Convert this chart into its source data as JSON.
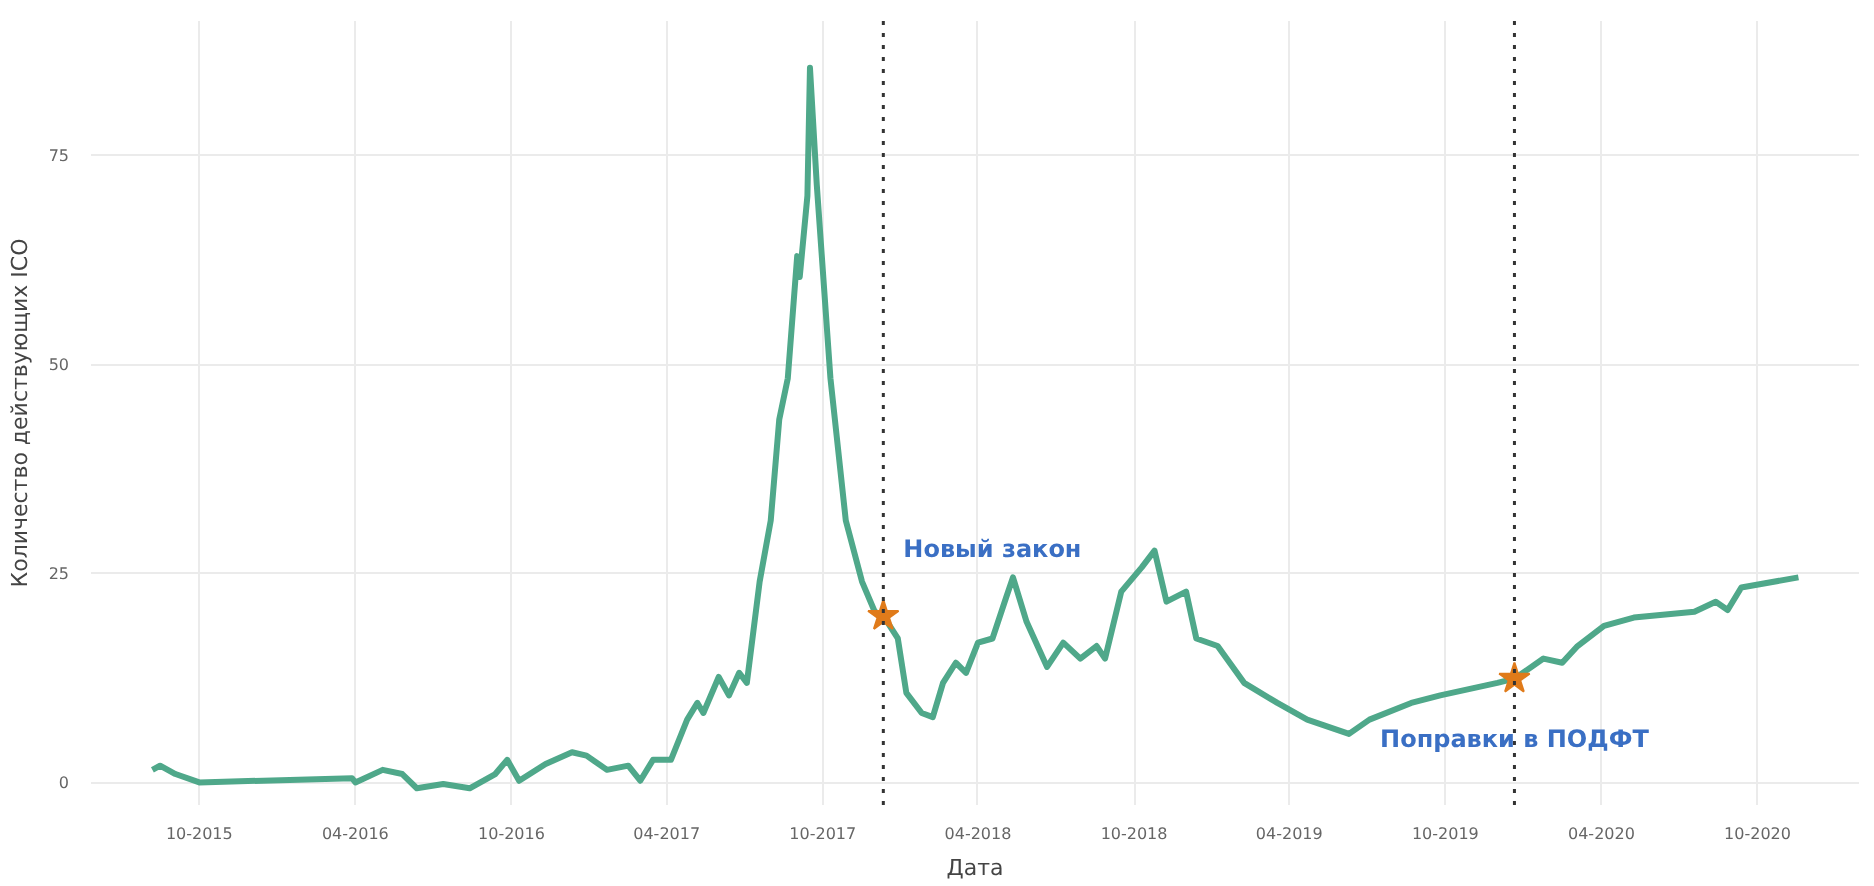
{
  "chart_data": {
    "type": "line",
    "xlabel": "Дата",
    "ylabel": "Количество действующих ICO",
    "xlim": [
      "2015-05-27",
      "2021-01-28"
    ],
    "ylim": [
      -2.7,
      91
    ],
    "xticks": [
      {
        "value": "2015-10-01",
        "label": "10-2015"
      },
      {
        "value": "2016-04-01",
        "label": "04-2016"
      },
      {
        "value": "2016-10-01",
        "label": "10-2016"
      },
      {
        "value": "2017-04-01",
        "label": "04-2017"
      },
      {
        "value": "2017-10-01",
        "label": "10-2017"
      },
      {
        "value": "2018-04-01",
        "label": "04-2018"
      },
      {
        "value": "2018-10-01",
        "label": "10-2018"
      },
      {
        "value": "2019-04-01",
        "label": "04-2019"
      },
      {
        "value": "2019-10-01",
        "label": "10-2019"
      },
      {
        "value": "2020-04-01",
        "label": "04-2020"
      },
      {
        "value": "2020-10-01",
        "label": "10-2020"
      }
    ],
    "yticks": [
      0,
      25,
      50,
      75
    ],
    "grid": true,
    "line_style": "solid",
    "series": [
      {
        "color": "#4fa88a",
        "x": [
          "2015-08-07",
          "2015-08-16",
          "2015-09-03",
          "2015-10-01",
          "2016-03-28",
          "2016-04-01",
          "2016-05-03",
          "2016-05-26",
          "2016-06-12",
          "2016-07-13",
          "2016-08-13",
          "2016-09-12",
          "2016-09-26",
          "2016-10-10",
          "2016-11-10",
          "2016-12-11",
          "2016-12-28",
          "2017-01-21",
          "2017-02-15",
          "2017-03-01",
          "2017-03-16",
          "2017-04-06",
          "2017-04-25",
          "2017-05-07",
          "2017-05-14",
          "2017-06-01",
          "2017-06-13",
          "2017-06-25",
          "2017-07-04",
          "2017-07-19",
          "2017-08-01",
          "2017-08-11",
          "2017-08-21",
          "2017-09-01",
          "2017-09-04",
          "2017-09-13",
          "2017-09-16",
          "2017-09-24",
          "2017-10-10",
          "2017-10-28",
          "2017-11-16",
          "2017-12-01",
          "2017-12-11",
          "2017-12-28",
          "2018-01-07",
          "2018-01-25",
          "2018-02-07",
          "2018-02-19",
          "2018-03-06",
          "2018-03-18",
          "2018-04-01",
          "2018-04-18",
          "2018-05-04",
          "2018-05-12",
          "2018-05-28",
          "2018-06-21",
          "2018-07-10",
          "2018-07-30",
          "2018-08-18",
          "2018-08-28",
          "2018-09-16",
          "2018-10-10",
          "2018-10-25",
          "2018-11-08",
          "2018-12-01",
          "2018-12-13",
          "2019-01-07",
          "2019-02-07",
          "2019-03-18",
          "2019-04-22",
          "2019-06-10",
          "2019-07-04",
          "2019-08-22",
          "2019-09-25",
          "2019-12-01",
          "2019-12-21",
          "2020-01-24",
          "2020-02-15",
          "2020-03-04",
          "2020-04-04",
          "2020-05-09",
          "2020-07-19",
          "2020-08-13",
          "2020-08-27",
          "2020-09-12",
          "2020-11-18"
        ],
        "values": [
          1.5,
          2,
          1,
          0,
          0.5,
          0,
          1.5,
          1,
          -0.7,
          -0.2,
          -0.7,
          1,
          2.7,
          0.2,
          2.2,
          3.6,
          3.2,
          1.5,
          2,
          0.2,
          2.7,
          2.7,
          7.5,
          9.5,
          8.3,
          12.6,
          10.4,
          13.1,
          11.9,
          24,
          31.3,
          43.4,
          48.3,
          62.9,
          60.4,
          70.1,
          85.4,
          71.4,
          48.3,
          31.3,
          24,
          20.4,
          19.9,
          17.2,
          10.7,
          8.3,
          7.8,
          11.9,
          14.3,
          13.1,
          16.7,
          17.2,
          22.1,
          24.5,
          19.2,
          13.8,
          16.7,
          14.8,
          16.3,
          14.8,
          22.8,
          25.7,
          27.7,
          21.6,
          22.8,
          17.2,
          16.3,
          11.9,
          9.5,
          7.5,
          5.8,
          7.5,
          9.5,
          10.4,
          11.9,
          12.4,
          14.8,
          14.3,
          16.3,
          18.7,
          19.7,
          20.4,
          21.6,
          20.6,
          23.3,
          24.5
        ]
      },
      {
        "type": "scatter",
        "marker": "star",
        "color": "#e07b1a",
        "x": [
          "2017-12-11",
          "2019-12-21"
        ],
        "values": [
          19.9,
          12.4
        ]
      }
    ],
    "ref_lines": [
      {
        "axis": "x",
        "value": "2017-12-11",
        "color": "#333333",
        "line_style": "dotted"
      },
      {
        "axis": "x",
        "value": "2019-12-21",
        "color": "#333333",
        "line_style": "dotted"
      }
    ],
    "annotations": [
      "Новый закон",
      "Поправки в ПОДФТ"
    ]
  }
}
